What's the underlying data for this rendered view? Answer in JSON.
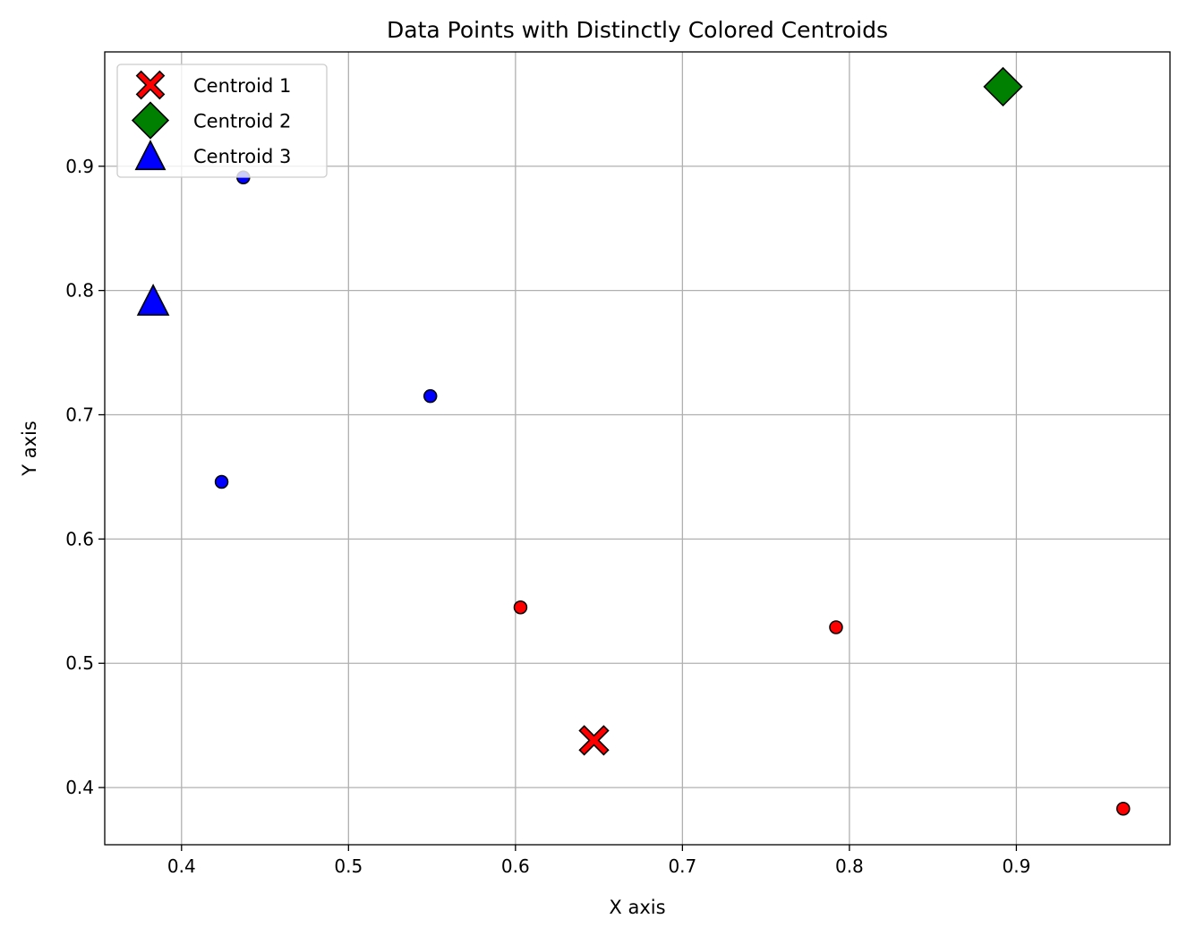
{
  "chart_data": {
    "type": "scatter",
    "title": "Data Points with Distinctly Colored Centroids",
    "xlabel": "X axis",
    "ylabel": "Y axis",
    "xlim": [
      0.354,
      0.992
    ],
    "ylim": [
      0.354,
      0.992
    ],
    "grid": true,
    "legend_position": "top-left",
    "xticks": [
      0.4,
      0.5,
      0.6,
      0.7,
      0.8,
      0.9
    ],
    "xtick_labels": [
      "0.4",
      "0.5",
      "0.6",
      "0.7",
      "0.8",
      "0.9"
    ],
    "yticks": [
      0.4,
      0.5,
      0.6,
      0.7,
      0.8,
      0.9
    ],
    "ytick_labels": [
      "0.4",
      "0.5",
      "0.6",
      "0.7",
      "0.8",
      "0.9"
    ],
    "points": [
      {
        "x": 0.437,
        "y": 0.891,
        "color": "#0000ff"
      },
      {
        "x": 0.549,
        "y": 0.715,
        "color": "#0000ff"
      },
      {
        "x": 0.424,
        "y": 0.646,
        "color": "#0000ff"
      },
      {
        "x": 0.603,
        "y": 0.545,
        "color": "#ff0000"
      },
      {
        "x": 0.792,
        "y": 0.529,
        "color": "#ff0000"
      },
      {
        "x": 0.964,
        "y": 0.383,
        "color": "#ff0000"
      }
    ],
    "centroids": [
      {
        "name": "Centroid 1",
        "x": 0.647,
        "y": 0.438,
        "marker": "x-filled",
        "color": "#ff0000"
      },
      {
        "name": "Centroid 2",
        "x": 0.892,
        "y": 0.964,
        "marker": "diamond",
        "color": "#008000"
      },
      {
        "name": "Centroid 3",
        "x": 0.383,
        "y": 0.792,
        "marker": "triangle",
        "color": "#0000ff"
      }
    ]
  }
}
